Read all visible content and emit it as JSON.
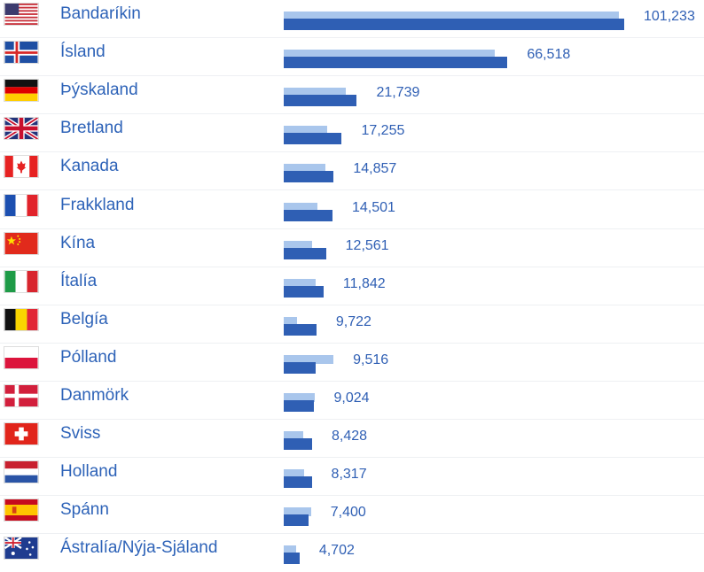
{
  "chart_data": {
    "type": "bar",
    "orientation": "horizontal",
    "categories": [
      "Bandaríkin",
      "Ísland",
      "Þýskaland",
      "Bretland",
      "Kanada",
      "Frakkland",
      "Kína",
      "Ítalía",
      "Belgía",
      "Pólland",
      "Danmörk",
      "Sviss",
      "Holland",
      "Spánn",
      "Ástralía/Nýja-Sjáland"
    ],
    "series": [
      {
        "values": [
          101233,
          66518,
          21739,
          17255,
          14857,
          14501,
          12561,
          11842,
          9722,
          9516,
          9024,
          8428,
          8317,
          7400,
          4702
        ]
      },
      {
        "values": [
          99700,
          62700,
          18500,
          12800,
          12400,
          10100,
          8500,
          9400,
          4000,
          14800,
          9100,
          5700,
          6100,
          8100,
          3600
        ]
      }
    ],
    "value_labels": [
      "101,233",
      "66,518",
      "21,739",
      "17,255",
      "14,857",
      "14,501",
      "12,561",
      "11,842",
      "9,722",
      "9,516",
      "9,024",
      "8,428",
      "8,317",
      "7,400",
      "4,702"
    ],
    "xlim": [
      0,
      101233
    ],
    "colors": {
      "current": "#2f5fb4",
      "previous": "#a9c6ec",
      "label": "#2e63b8"
    },
    "flags": [
      "us",
      "is",
      "de",
      "gb",
      "ca",
      "fr",
      "cn",
      "it",
      "be",
      "pl",
      "dk",
      "ch",
      "nl",
      "es",
      "au"
    ]
  }
}
